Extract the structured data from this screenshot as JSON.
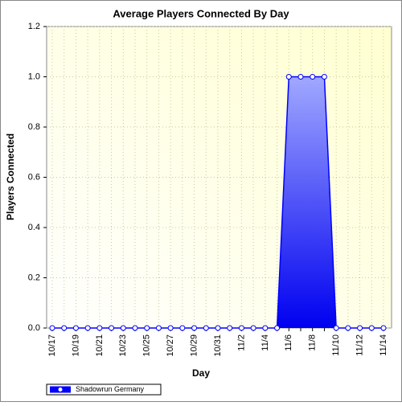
{
  "chart_data": {
    "type": "area",
    "title": "Average Players Connected By Day",
    "x_label": "Day",
    "y_label": "Players Connected",
    "categories": [
      "10/17",
      null,
      "10/19",
      null,
      "10/21",
      null,
      "10/23",
      null,
      "10/25",
      null,
      "10/27",
      null,
      "10/29",
      null,
      "10/31",
      null,
      "11/2",
      null,
      "11/4",
      null,
      "11/6",
      null,
      "11/8",
      null,
      "11/10",
      null,
      "11/12",
      null,
      "11/14"
    ],
    "series": [
      {
        "name": "Shadowrun Germany",
        "color": "#0000ff",
        "values": [
          0,
          0,
          0,
          0,
          0,
          0,
          0,
          0,
          0,
          0,
          0,
          0,
          0,
          0,
          0,
          0,
          0,
          0,
          0,
          0,
          1,
          1,
          1,
          1,
          0,
          0,
          0,
          0,
          0
        ]
      }
    ],
    "ylim": [
      0,
      1.2
    ],
    "yticks": [
      {
        "value": 0,
        "label": "0.0"
      },
      0.2,
      0.4,
      0.6,
      0.8,
      {
        "value": 1,
        "label": "1.0"
      },
      1.2
    ],
    "grid": true,
    "legend": "bottom-left"
  }
}
